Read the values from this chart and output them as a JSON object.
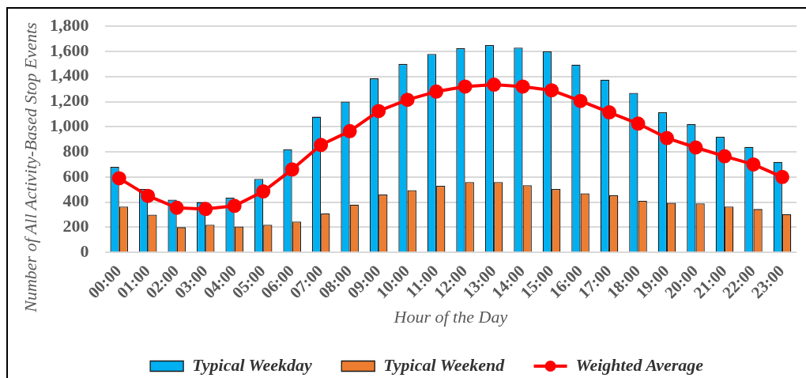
{
  "chart_data": {
    "type": "bar",
    "xlabel": "Hour of the Day",
    "ylabel": "Number of All Activity-Based Stop Events",
    "categories": [
      "00:00",
      "01:00",
      "02:00",
      "03:00",
      "04:00",
      "05:00",
      "06:00",
      "07:00",
      "08:00",
      "09:00",
      "10:00",
      "11:00",
      "12:00",
      "13:00",
      "14:00",
      "15:00",
      "16:00",
      "17:00",
      "18:00",
      "19:00",
      "20:00",
      "21:00",
      "22:00",
      "23:00"
    ],
    "series": [
      {
        "name": "Typical Weekday",
        "color": "#00b0f0",
        "values": [
          680,
          505,
          420,
          400,
          435,
          585,
          820,
          1080,
          1200,
          1385,
          1500,
          1580,
          1625,
          1650,
          1630,
          1600,
          1495,
          1375,
          1270,
          1115,
          1020,
          920,
          840,
          720
        ]
      },
      {
        "name": "Typical Weekend",
        "color": "#ed7d31",
        "values": [
          365,
          300,
          200,
          220,
          205,
          220,
          245,
          310,
          380,
          460,
          495,
          530,
          560,
          560,
          535,
          505,
          470,
          455,
          410,
          395,
          390,
          365,
          345,
          305
        ]
      },
      {
        "name": "Weighted Average",
        "type": "line",
        "color": "#ff0000",
        "marker": "circle",
        "values": [
          590,
          450,
          355,
          345,
          370,
          485,
          660,
          855,
          965,
          1125,
          1215,
          1280,
          1320,
          1335,
          1320,
          1290,
          1205,
          1115,
          1025,
          910,
          835,
          765,
          700,
          600
        ]
      }
    ],
    "ylim": [
      0,
      1800
    ],
    "yticks": [
      0,
      200,
      400,
      600,
      800,
      {
        "value": 1000,
        "label": "1,000"
      },
      {
        "value": 1200,
        "label": "1,200"
      },
      {
        "value": 1400,
        "label": "1,400"
      },
      {
        "value": 1600,
        "label": "1,600"
      },
      {
        "value": 1800,
        "label": "1,800"
      }
    ],
    "grid": "y",
    "legend": "bottom"
  }
}
